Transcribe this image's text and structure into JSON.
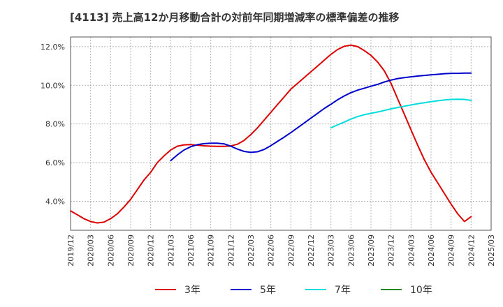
{
  "chart_data": {
    "type": "line",
    "title": "[4113]  売上高12か月移動合計の対前年同期増減率の標準偏差の推移",
    "x_labels": [
      "2019/12",
      "2020/03",
      "2020/06",
      "2020/09",
      "2020/12",
      "2021/03",
      "2021/06",
      "2021/09",
      "2021/12",
      "2022/03",
      "2022/06",
      "2022/09",
      "2022/12",
      "2023/03",
      "2023/06",
      "2023/09",
      "2023/12",
      "2024/03",
      "2024/06",
      "2024/09",
      "2024/12",
      "2025/03"
    ],
    "y_ticks": [
      "4.0%",
      "6.0%",
      "8.0%",
      "10.0%",
      "12.0%"
    ],
    "ylim": [
      2.5,
      12.5
    ],
    "grid": true,
    "legend_position": "bottom",
    "series": [
      {
        "name": "3年",
        "color": "#dd0000",
        "points": [
          [
            "2019/12",
            3.5
          ],
          [
            "2020/01",
            3.3
          ],
          [
            "2020/02",
            3.1
          ],
          [
            "2020/03",
            2.95
          ],
          [
            "2020/04",
            2.88
          ],
          [
            "2020/05",
            2.92
          ],
          [
            "2020/06",
            3.1
          ],
          [
            "2020/07",
            3.35
          ],
          [
            "2020/08",
            3.7
          ],
          [
            "2020/09",
            4.1
          ],
          [
            "2020/10",
            4.6
          ],
          [
            "2020/11",
            5.1
          ],
          [
            "2020/12",
            5.5
          ],
          [
            "2021/01",
            6.0
          ],
          [
            "2021/02",
            6.35
          ],
          [
            "2021/03",
            6.65
          ],
          [
            "2021/04",
            6.85
          ],
          [
            "2021/05",
            6.92
          ],
          [
            "2021/06",
            6.93
          ],
          [
            "2021/07",
            6.9
          ],
          [
            "2021/08",
            6.87
          ],
          [
            "2021/09",
            6.85
          ],
          [
            "2021/10",
            6.84
          ],
          [
            "2021/11",
            6.84
          ],
          [
            "2021/12",
            6.86
          ],
          [
            "2022/01",
            6.95
          ],
          [
            "2022/02",
            7.15
          ],
          [
            "2022/03",
            7.45
          ],
          [
            "2022/04",
            7.8
          ],
          [
            "2022/05",
            8.2
          ],
          [
            "2022/06",
            8.6
          ],
          [
            "2022/07",
            9.0
          ],
          [
            "2022/08",
            9.4
          ],
          [
            "2022/09",
            9.8
          ],
          [
            "2022/10",
            10.1
          ],
          [
            "2022/11",
            10.4
          ],
          [
            "2022/12",
            10.7
          ],
          [
            "2023/01",
            11.0
          ],
          [
            "2023/02",
            11.3
          ],
          [
            "2023/03",
            11.6
          ],
          [
            "2023/04",
            11.85
          ],
          [
            "2023/05",
            12.02
          ],
          [
            "2023/06",
            12.08
          ],
          [
            "2023/07",
            12.0
          ],
          [
            "2023/08",
            11.8
          ],
          [
            "2023/09",
            11.55
          ],
          [
            "2023/10",
            11.2
          ],
          [
            "2023/11",
            10.75
          ],
          [
            "2023/12",
            10.1
          ],
          [
            "2024/01",
            9.3
          ],
          [
            "2024/02",
            8.5
          ],
          [
            "2024/03",
            7.7
          ],
          [
            "2024/04",
            6.9
          ],
          [
            "2024/05",
            6.15
          ],
          [
            "2024/06",
            5.5
          ],
          [
            "2024/07",
            4.95
          ],
          [
            "2024/08",
            4.4
          ],
          [
            "2024/09",
            3.85
          ],
          [
            "2024/10",
            3.35
          ],
          [
            "2024/11",
            2.95
          ],
          [
            "2024/12",
            3.2
          ]
        ]
      },
      {
        "name": "5年",
        "color": "#0000cc",
        "points": [
          [
            "2021/03",
            6.1
          ],
          [
            "2021/04",
            6.4
          ],
          [
            "2021/05",
            6.65
          ],
          [
            "2021/06",
            6.82
          ],
          [
            "2021/07",
            6.93
          ],
          [
            "2021/08",
            6.98
          ],
          [
            "2021/09",
            7.0
          ],
          [
            "2021/10",
            7.0
          ],
          [
            "2021/11",
            6.97
          ],
          [
            "2021/12",
            6.85
          ],
          [
            "2022/01",
            6.7
          ],
          [
            "2022/02",
            6.58
          ],
          [
            "2022/03",
            6.53
          ],
          [
            "2022/04",
            6.56
          ],
          [
            "2022/05",
            6.68
          ],
          [
            "2022/06",
            6.88
          ],
          [
            "2022/07",
            7.1
          ],
          [
            "2022/08",
            7.32
          ],
          [
            "2022/09",
            7.55
          ],
          [
            "2022/10",
            7.8
          ],
          [
            "2022/11",
            8.05
          ],
          [
            "2022/12",
            8.3
          ],
          [
            "2023/01",
            8.55
          ],
          [
            "2023/02",
            8.8
          ],
          [
            "2023/03",
            9.02
          ],
          [
            "2023/04",
            9.25
          ],
          [
            "2023/05",
            9.45
          ],
          [
            "2023/06",
            9.62
          ],
          [
            "2023/07",
            9.75
          ],
          [
            "2023/08",
            9.85
          ],
          [
            "2023/09",
            9.95
          ],
          [
            "2023/10",
            10.05
          ],
          [
            "2023/11",
            10.17
          ],
          [
            "2023/12",
            10.27
          ],
          [
            "2024/01",
            10.35
          ],
          [
            "2024/02",
            10.4
          ],
          [
            "2024/03",
            10.44
          ],
          [
            "2024/04",
            10.48
          ],
          [
            "2024/05",
            10.51
          ],
          [
            "2024/06",
            10.54
          ],
          [
            "2024/07",
            10.57
          ],
          [
            "2024/08",
            10.6
          ],
          [
            "2024/09",
            10.62
          ],
          [
            "2024/10",
            10.62
          ],
          [
            "2024/11",
            10.63
          ],
          [
            "2024/12",
            10.63
          ]
        ]
      },
      {
        "name": "7年",
        "color": "#00dddd",
        "points": [
          [
            "2023/03",
            7.8
          ],
          [
            "2023/04",
            7.95
          ],
          [
            "2023/05",
            8.1
          ],
          [
            "2023/06",
            8.25
          ],
          [
            "2023/07",
            8.38
          ],
          [
            "2023/08",
            8.48
          ],
          [
            "2023/09",
            8.55
          ],
          [
            "2023/10",
            8.62
          ],
          [
            "2023/11",
            8.7
          ],
          [
            "2023/12",
            8.78
          ],
          [
            "2024/01",
            8.85
          ],
          [
            "2024/02",
            8.92
          ],
          [
            "2024/03",
            8.98
          ],
          [
            "2024/04",
            9.05
          ],
          [
            "2024/05",
            9.1
          ],
          [
            "2024/06",
            9.15
          ],
          [
            "2024/07",
            9.2
          ],
          [
            "2024/08",
            9.24
          ],
          [
            "2024/09",
            9.27
          ],
          [
            "2024/10",
            9.28
          ],
          [
            "2024/11",
            9.27
          ],
          [
            "2024/12",
            9.22
          ]
        ]
      },
      {
        "name": "10年",
        "color": "#228822",
        "points": []
      }
    ]
  }
}
